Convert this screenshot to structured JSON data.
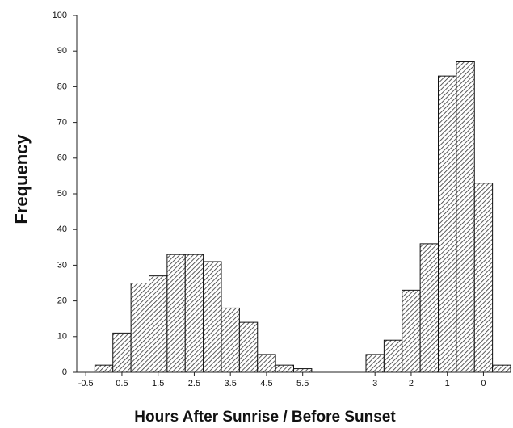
{
  "chart_data": {
    "type": "bar",
    "xlabel": "Hours After Sunrise / Before Sunset",
    "ylabel": "Frequency",
    "categories": [
      "-0.5",
      null,
      "0.5",
      null,
      "1.5",
      null,
      "2.5",
      null,
      "3.5",
      null,
      "4.5",
      null,
      "5.5",
      null,
      null,
      null,
      "3",
      null,
      "2",
      null,
      "1",
      null,
      "0",
      null
    ],
    "values": [
      0,
      2,
      11,
      25,
      27,
      33,
      33,
      31,
      18,
      14,
      5,
      2,
      1,
      0,
      0,
      0,
      5,
      9,
      23,
      36,
      83,
      87,
      53,
      2
    ],
    "color": "#333333",
    "ylim": [
      0,
      100
    ],
    "yticks": [
      0,
      10,
      20,
      30,
      40,
      50,
      60,
      70,
      80,
      90,
      100
    ],
    "grid": false
  }
}
